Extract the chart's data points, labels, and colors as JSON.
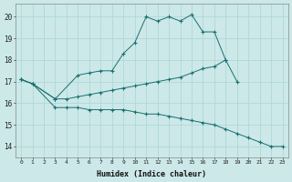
{
  "xlabel": "Humidex (Indice chaleur)",
  "xlim": [
    -0.5,
    23.5
  ],
  "ylim": [
    13.5,
    20.6
  ],
  "xticks": [
    0,
    1,
    2,
    3,
    4,
    5,
    6,
    7,
    8,
    9,
    10,
    11,
    12,
    13,
    14,
    15,
    16,
    17,
    18,
    19,
    20,
    21,
    22,
    23
  ],
  "yticks": [
    14,
    15,
    16,
    17,
    18,
    19,
    20
  ],
  "bg_color": "#cce8e8",
  "grid_color": "#b0d8d8",
  "line_color": "#1a7070",
  "series": [
    {
      "x": [
        0,
        1,
        3,
        5,
        6,
        7,
        8,
        9,
        10,
        11,
        12,
        13,
        14,
        15,
        16,
        17,
        18
      ],
      "y": [
        17.1,
        16.9,
        16.2,
        17.3,
        17.4,
        17.5,
        17.5,
        18.3,
        18.8,
        20.0,
        19.8,
        20.0,
        19.8,
        20.1,
        19.3,
        19.3,
        18.0
      ]
    },
    {
      "x": [
        0,
        1,
        3,
        4,
        5,
        6,
        7,
        8,
        9,
        10,
        11,
        12,
        13,
        14,
        15,
        16,
        17,
        18,
        19
      ],
      "y": [
        17.1,
        16.9,
        16.2,
        16.2,
        16.3,
        16.4,
        16.5,
        16.6,
        16.7,
        16.8,
        16.9,
        17.0,
        17.1,
        17.2,
        17.4,
        17.6,
        17.7,
        18.0,
        17.0
      ]
    },
    {
      "x": [
        0,
        1,
        3,
        4,
        5,
        6,
        7,
        8,
        9,
        10,
        11,
        12,
        13,
        14,
        15,
        16,
        17,
        18,
        19,
        20,
        21,
        22,
        23
      ],
      "y": [
        17.1,
        16.9,
        15.8,
        15.8,
        15.8,
        15.7,
        15.7,
        15.7,
        15.7,
        15.6,
        15.5,
        15.5,
        15.4,
        15.3,
        15.2,
        15.1,
        15.0,
        14.8,
        14.6,
        14.4,
        14.2,
        14.0,
        14.0
      ]
    }
  ]
}
